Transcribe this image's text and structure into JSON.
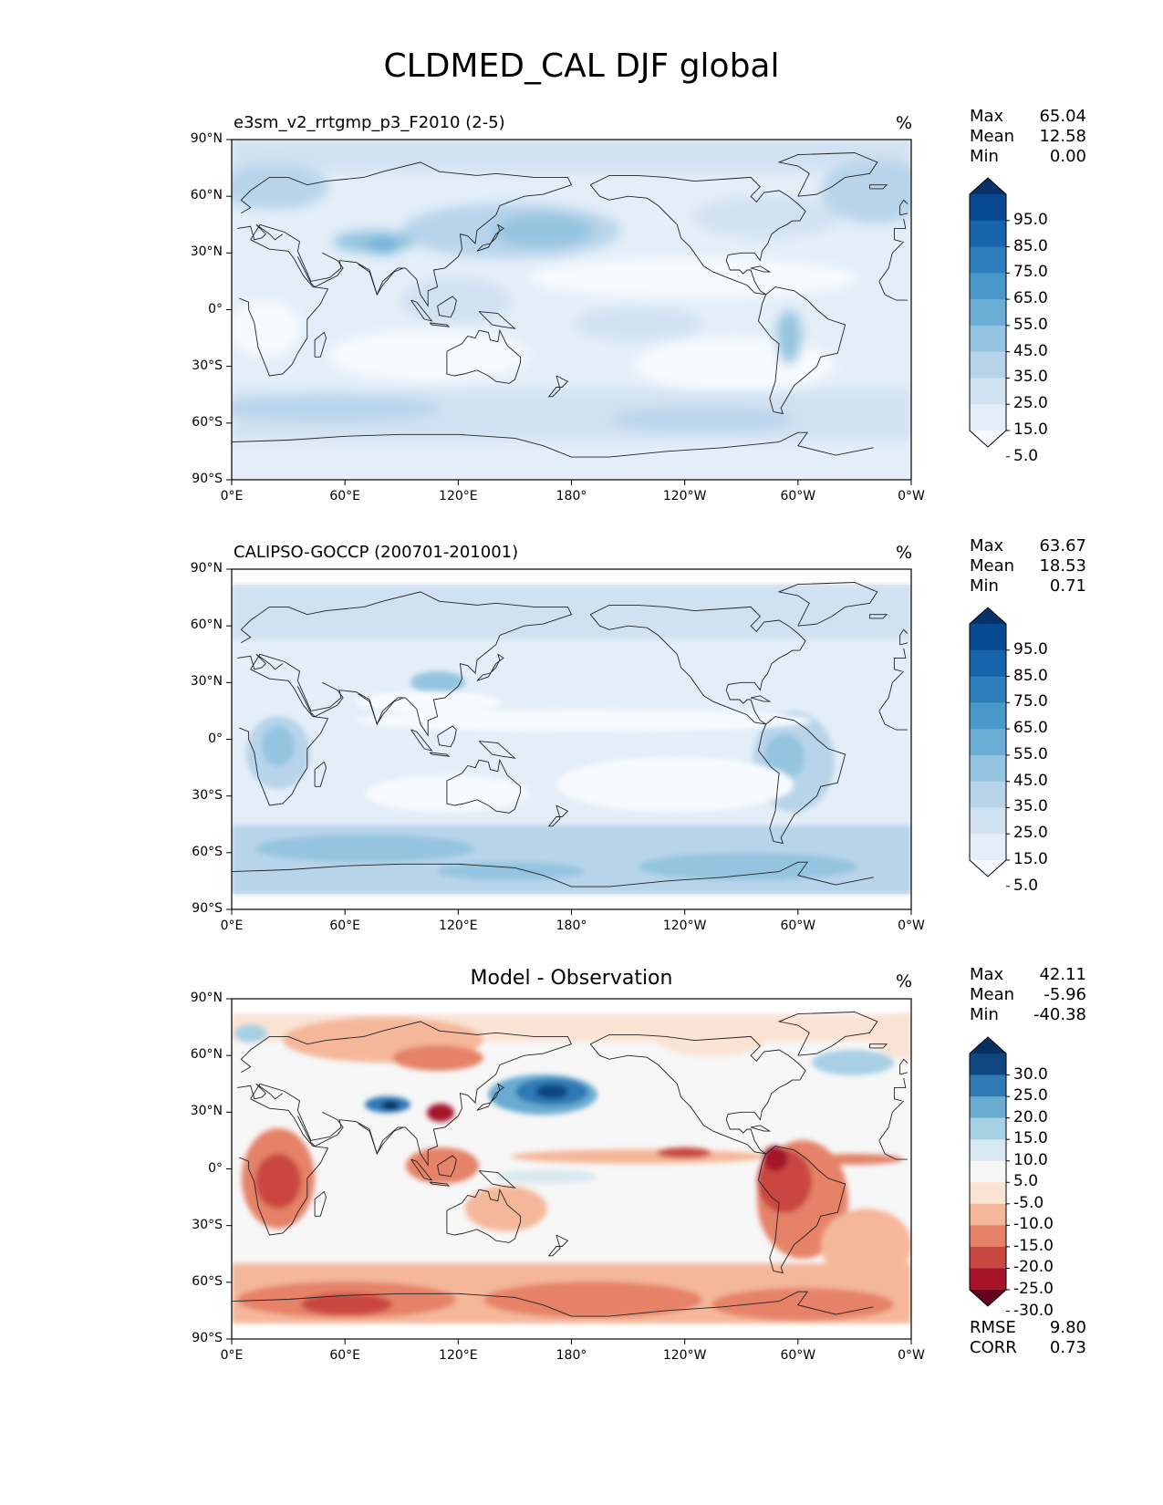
{
  "figure": {
    "title": "CLDMED_CAL DJF global"
  },
  "axes": {
    "x_ticks": [
      "0°E",
      "60°E",
      "120°E",
      "180°",
      "120°W",
      "60°W",
      "0°W"
    ],
    "y_ticks": [
      "90°N",
      "60°N",
      "30°N",
      "0°",
      "30°S",
      "60°S",
      "90°S"
    ]
  },
  "chart_data": [
    {
      "type": "heatmap",
      "title": "e3sm_v2_rrtgmp_p3_F2010 (2-5)",
      "units": "%",
      "stats": {
        "Max": "65.04",
        "Mean": "12.58",
        "Min": "0.00"
      },
      "colorbar": {
        "levels": [
          "95.0",
          "85.0",
          "75.0",
          "65.0",
          "55.0",
          "45.0",
          "35.0",
          "25.0",
          "15.0",
          "5.0"
        ],
        "extend": "both",
        "colors": [
          "#f7fbff",
          "#e3eef8",
          "#d0e1f2",
          "#b7d4ea",
          "#94c4df",
          "#6aaed6",
          "#4a98c9",
          "#2e7ebc",
          "#1764ab",
          "#084a91",
          "#08306b"
        ]
      },
      "xlim": [
        0,
        360
      ],
      "ylim": [
        -90,
        90
      ]
    },
    {
      "type": "heatmap",
      "title": "CALIPSO-GOCCP (200701-201001)",
      "units": "%",
      "stats": {
        "Max": "63.67",
        "Mean": "18.53",
        "Min": "0.71"
      },
      "colorbar": {
        "levels": [
          "95.0",
          "85.0",
          "75.0",
          "65.0",
          "55.0",
          "45.0",
          "35.0",
          "25.0",
          "15.0",
          "5.0"
        ],
        "extend": "both",
        "colors": [
          "#f7fbff",
          "#e3eef8",
          "#d0e1f2",
          "#b7d4ea",
          "#94c4df",
          "#6aaed6",
          "#4a98c9",
          "#2e7ebc",
          "#1764ab",
          "#084a91",
          "#08306b"
        ]
      },
      "xlim": [
        0,
        360
      ],
      "ylim": [
        -80,
        80
      ]
    },
    {
      "type": "heatmap",
      "title": "Model - Observation",
      "units": "%",
      "stats": {
        "Max": "42.11",
        "Mean": "-5.96",
        "Min": "-40.38"
      },
      "metrics": {
        "RMSE": "9.80",
        "CORR": "0.73"
      },
      "colorbar": {
        "levels": [
          "30.0",
          "25.0",
          "20.0",
          "15.0",
          "10.0",
          "5.0",
          "-5.0",
          "-10.0",
          "-15.0",
          "-20.0",
          "-25.0",
          "-30.0"
        ],
        "extend": "both",
        "colors": [
          "#67001f",
          "#a51429",
          "#c94741",
          "#e58267",
          "#f5b79a",
          "#fbe3d4",
          "#f7f7f7",
          "#d9e9f1",
          "#a7d0e4",
          "#6aacd0",
          "#2f79b5",
          "#114781",
          "#053061"
        ]
      },
      "xlim": [
        0,
        360
      ],
      "ylim": [
        -80,
        80
      ]
    }
  ]
}
